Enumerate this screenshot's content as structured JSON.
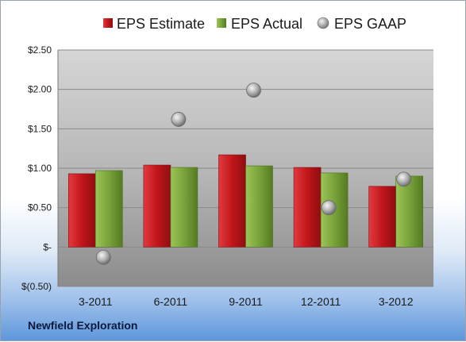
{
  "company": "Newfield Exploration",
  "chart_data": {
    "type": "bar",
    "categories": [
      "3-2011",
      "6-2011",
      "9-2011",
      "12-2011",
      "3-2012"
    ],
    "series": [
      {
        "name": "EPS Estimate",
        "kind": "bar",
        "color": "#c0161b",
        "values": [
          0.93,
          1.04,
          1.17,
          1.01,
          0.77
        ]
      },
      {
        "name": "EPS Actual",
        "kind": "bar",
        "color": "#78a33a",
        "values": [
          0.97,
          1.01,
          1.03,
          0.94,
          0.9
        ]
      },
      {
        "name": "EPS GAAP",
        "kind": "marker",
        "color": "#a6a6a6",
        "values": [
          -0.13,
          1.62,
          1.99,
          0.5,
          0.86
        ]
      }
    ],
    "ylim": [
      -0.5,
      2.5
    ],
    "yticks": [
      2.5,
      2.0,
      1.5,
      1.0,
      0.5,
      0,
      -0.5
    ],
    "ytick_labels": [
      "$2.50",
      "$2.00",
      "$1.50",
      "$1.00",
      "$0.50",
      "$-",
      "$(0.50)"
    ],
    "grid": true,
    "legend_position": "top"
  }
}
